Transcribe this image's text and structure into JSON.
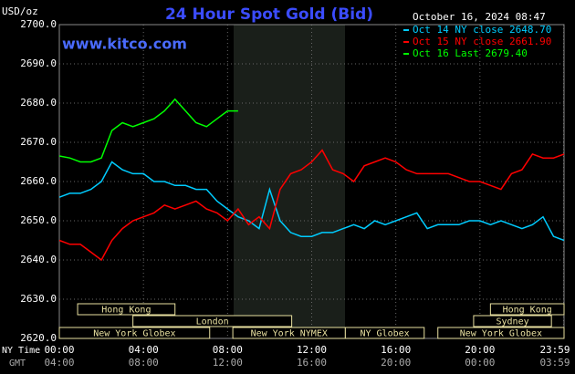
{
  "chart_data": {
    "type": "line",
    "title": "24 Hour Spot Gold (Bid)",
    "website": "www.kitco.com",
    "y_label": "USD/oz",
    "timestamp": "October 16, 2024 08:47",
    "x_row_label": "NY Time",
    "x2_row_label": "GMT",
    "xlim": [
      0,
      24
    ],
    "xticks": [
      {
        "value": 0,
        "label": "00:00"
      },
      {
        "value": 4,
        "label": "04:00"
      },
      {
        "value": 8,
        "label": "08:00"
      },
      {
        "value": 12,
        "label": "12:00"
      },
      {
        "value": 16,
        "label": "16:00"
      },
      {
        "value": 20,
        "label": "20:00"
      },
      {
        "value": 23.98,
        "label": "23:59"
      }
    ],
    "gmt_labels": [
      "04:00",
      "08:00",
      "12:00",
      "16:00",
      "20:00",
      "00:00",
      "03:59"
    ],
    "ylim": [
      2620,
      2700
    ],
    "yticks": [
      {
        "value": 2620,
        "label": "2620.0"
      },
      {
        "value": 2630,
        "label": "2630.0"
      },
      {
        "value": 2640,
        "label": "2640.0"
      },
      {
        "value": 2650,
        "label": "2650.0"
      },
      {
        "value": 2660,
        "label": "2660.0"
      },
      {
        "value": 2670,
        "label": "2670.0"
      },
      {
        "value": 2680,
        "label": "2680.0"
      },
      {
        "value": 2690,
        "label": "2690.0"
      },
      {
        "value": 2700,
        "label": "2700.0"
      }
    ],
    "grid": true,
    "x": [
      0,
      0.5,
      1,
      1.5,
      2,
      2.5,
      3,
      3.5,
      4,
      4.5,
      5,
      5.5,
      6,
      6.5,
      7,
      7.5,
      8,
      8.5,
      9,
      9.5,
      10,
      10.5,
      11,
      11.5,
      12,
      12.5,
      13,
      13.5,
      14,
      14.5,
      15,
      15.5,
      16,
      16.5,
      17,
      17.5,
      18,
      18.5,
      19,
      19.5,
      20,
      20.5,
      21,
      21.5,
      22,
      22.5,
      23,
      23.5,
      24
    ],
    "series": [
      {
        "name": "Oct 14 NY close 2648.70",
        "color": "#00ccff",
        "values": [
          2656,
          2657,
          2657,
          2658,
          2660,
          2665,
          2663,
          2662,
          2662,
          2660,
          2660,
          2659,
          2659,
          2658,
          2658,
          2655,
          2653,
          2651,
          2650,
          2648,
          2658,
          2650,
          2647,
          2646,
          2646,
          2647,
          2647,
          2648,
          2649,
          2648,
          2650,
          2649,
          2650,
          2651,
          2652,
          2648,
          2649,
          2649,
          2649,
          2650,
          2650,
          2649,
          2650,
          2649,
          2648,
          2649,
          2651,
          2646,
          2645
        ]
      },
      {
        "name": "Oct 15 NY close 2661.90",
        "color": "#ff0000",
        "values": [
          2645,
          2644,
          2644,
          2642,
          2640,
          2645,
          2648,
          2650,
          2651,
          2652,
          2654,
          2653,
          2654,
          2655,
          2653,
          2652,
          2650,
          2653,
          2649,
          2651,
          2648,
          2658,
          2662,
          2663,
          2665,
          2668,
          2663,
          2662,
          2660,
          2664,
          2665,
          2666,
          2665,
          2663,
          2662,
          2662,
          2662,
          2662,
          2661,
          2660,
          2660,
          2659,
          2658,
          2662,
          2663,
          2667,
          2666,
          2666,
          2667
        ]
      },
      {
        "name": "Oct 16 Last 2679.40",
        "color": "#00ff00",
        "values": [
          2666.5,
          2666,
          2665,
          2665,
          2666,
          2673,
          2675,
          2674,
          2675,
          2676,
          2678,
          2681,
          2678,
          2675,
          2674,
          2676,
          2678,
          2678,
          null,
          null,
          null,
          null,
          null,
          null,
          null,
          null,
          null,
          null,
          null,
          null,
          null,
          null,
          null,
          null,
          null,
          null,
          null,
          null,
          null,
          null,
          null,
          null,
          null,
          null,
          null,
          null,
          null,
          null,
          null
        ]
      }
    ],
    "sessions": [
      [
        {
          "label": "Hong Kong",
          "start": 0.87,
          "end": 5.5
        },
        {
          "label": "Hong Kong",
          "start": 20.5,
          "end": 24
        }
      ],
      [
        {
          "label": "London",
          "start": 3.5,
          "end": 11.05
        },
        {
          "label": "Sydney",
          "start": 19.7,
          "end": 23.4
        }
      ],
      [
        {
          "label": "New York Globex",
          "start": 0,
          "end": 7.15
        },
        {
          "label": "New York NYMEX",
          "start": 8.25,
          "end": 13.6
        },
        {
          "label": "NY Globex",
          "start": 13.6,
          "end": 17.35
        },
        {
          "label": "New York Globex",
          "start": 18,
          "end": 24
        }
      ]
    ]
  }
}
